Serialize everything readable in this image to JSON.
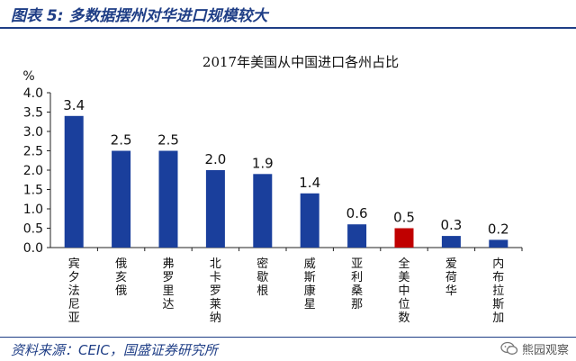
{
  "figure": {
    "title": "图表 5:  多数据摆州对华进口规模较大",
    "source": "资料来源：CEIC，国盛证券研究所",
    "watermark": "熊园观察"
  },
  "colors": {
    "accent": "#1f3e86",
    "bar_primary": "#1a3f9c",
    "bar_highlight": "#c00000",
    "axis": "#222222"
  },
  "chart_data": {
    "type": "bar",
    "title": "2017年美国从中国进口各州占比",
    "ylabel": "%",
    "xlabel": "",
    "ylim": [
      0,
      4.0
    ],
    "yticks": [
      "0.0",
      "0.5",
      "1.0",
      "1.5",
      "2.0",
      "2.5",
      "3.0",
      "3.5",
      "4.0"
    ],
    "grid": false,
    "categories": [
      "宾夕法尼亚",
      "俄亥俄",
      "弗罗里达",
      "北卡罗莱纳",
      "密歇根",
      "威斯康星",
      "亚利桑那",
      "全美中位数",
      "爱荷华",
      "内布拉斯加"
    ],
    "values": [
      3.4,
      2.5,
      2.5,
      2.0,
      1.9,
      1.4,
      0.6,
      0.5,
      0.3,
      0.2
    ],
    "value_labels": [
      "3.4",
      "2.5",
      "2.5",
      "2.0",
      "1.9",
      "1.4",
      "0.6",
      "0.5",
      "0.3",
      "0.2"
    ],
    "highlight_index": 7
  }
}
